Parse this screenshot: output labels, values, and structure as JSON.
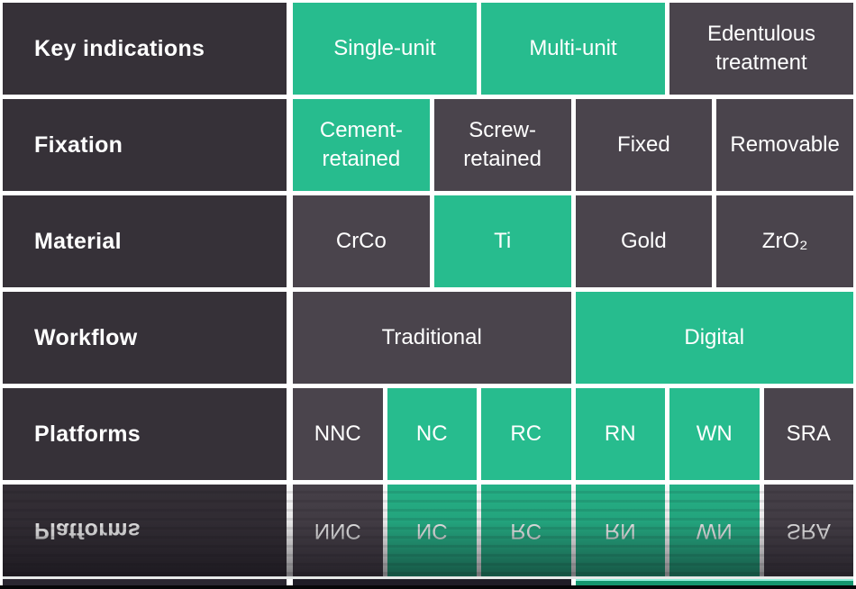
{
  "colors": {
    "gap": "#ffffff",
    "label_bg": "#363138",
    "dark_cell": "#4a444c",
    "green": "#27bc8e",
    "text": "#ffffff",
    "separator": "#e6e9e8",
    "strip_label": "#2b2731",
    "strip_traditional": "#201d27",
    "strip_digital": "#14966e",
    "strip_digital_edge": "#8dedd8",
    "baseline": "#070709"
  },
  "table": {
    "rows": [
      {
        "label": "Key indications",
        "cells": [
          {
            "text": "Single-unit",
            "variant": "green"
          },
          {
            "text": "Multi-unit",
            "variant": "green"
          },
          {
            "text": "Edentulous treatment",
            "variant": "dark"
          }
        ]
      },
      {
        "label": "Fixation",
        "cells": [
          {
            "text": "Cement-retained",
            "variant": "green"
          },
          {
            "text": "Screw-retained",
            "variant": "dark"
          },
          {
            "text": "Fixed",
            "variant": "dark"
          },
          {
            "text": "Removable",
            "variant": "dark"
          }
        ]
      },
      {
        "label": "Material",
        "cells": [
          {
            "text": "CrCo",
            "variant": "dark"
          },
          {
            "text": "Ti",
            "variant": "green"
          },
          {
            "text": "Gold",
            "variant": "dark"
          },
          {
            "text": "ZrO₂",
            "variant": "dark"
          }
        ]
      },
      {
        "label": "Workflow",
        "cells": [
          {
            "text": "Traditional",
            "variant": "dark"
          },
          {
            "text": "Digital",
            "variant": "green"
          }
        ]
      },
      {
        "label": "Platforms",
        "cells": [
          {
            "text": "NNC",
            "variant": "dark"
          },
          {
            "text": "NC",
            "variant": "green"
          },
          {
            "text": "RC",
            "variant": "green"
          },
          {
            "text": "RN",
            "variant": "green"
          },
          {
            "text": "WN",
            "variant": "green"
          },
          {
            "text": "SRA",
            "variant": "dark"
          }
        ]
      }
    ]
  },
  "reflection": {
    "mirrors_row": "Platforms",
    "footer_strip_mirrors_row": "Workflow"
  }
}
